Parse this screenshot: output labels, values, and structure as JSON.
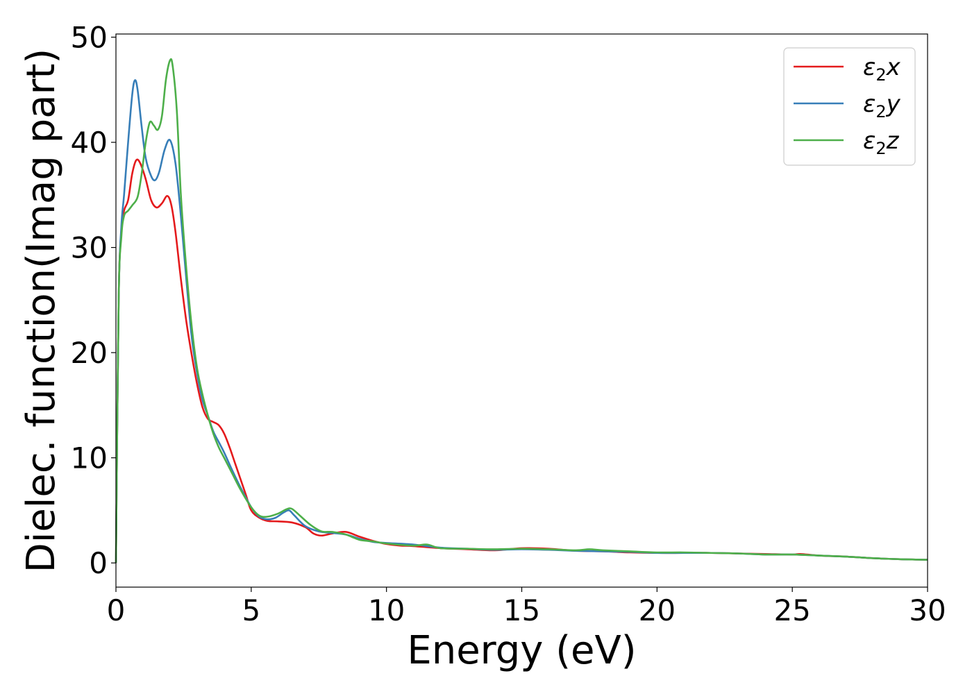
{
  "chart_data": {
    "type": "line",
    "xlabel": "Energy (eV)",
    "ylabel": "Dielec. function(Imag part)",
    "xlim": [
      0,
      30
    ],
    "ylim": [
      -2.3,
      50.3
    ],
    "xticks": [
      0,
      5,
      10,
      15,
      20,
      25,
      30
    ],
    "yticks": [
      0,
      10,
      20,
      30,
      40,
      50
    ],
    "x_tick_labels": [
      "0",
      "5",
      "10",
      "15",
      "20",
      "25",
      "30"
    ],
    "y_tick_labels": [
      "0",
      "10",
      "20",
      "30",
      "40",
      "50"
    ],
    "grid": false,
    "legend_position": "top-right",
    "series": [
      {
        "name": "ε₂x",
        "legend_base": "ε",
        "legend_sub": "2",
        "legend_var": "x",
        "color": "#e41a1c",
        "x": [
          0,
          0.1,
          0.2,
          0.3,
          0.45,
          0.6,
          0.75,
          0.9,
          1.1,
          1.3,
          1.5,
          1.7,
          1.9,
          2.05,
          2.2,
          2.4,
          2.6,
          2.8,
          3.0,
          3.2,
          3.4,
          3.6,
          3.8,
          4.0,
          4.2,
          4.4,
          4.6,
          4.8,
          5.0,
          5.3,
          5.6,
          6.0,
          6.5,
          7.0,
          7.3,
          7.6,
          8.0,
          8.5,
          9.0,
          9.5,
          10.0,
          10.5,
          11.0,
          12.0,
          13.0,
          14.0,
          15.0,
          16.0,
          17.0,
          18.0,
          19.0,
          20.0,
          21.0,
          22.0,
          23.0,
          24.0,
          25.0,
          25.3,
          26.0,
          27.0,
          28.0,
          29.0,
          30.0
        ],
        "y": [
          0,
          25,
          31.5,
          33.5,
          34.5,
          37,
          38.3,
          38.0,
          36.5,
          34.5,
          33.8,
          34.2,
          34.9,
          34.0,
          31.5,
          27,
          23,
          19.8,
          17.0,
          14.8,
          13.7,
          13.4,
          13.1,
          12.3,
          11.0,
          9.5,
          8.0,
          6.5,
          5.0,
          4.3,
          4.0,
          3.95,
          3.85,
          3.4,
          2.8,
          2.6,
          2.8,
          2.95,
          2.5,
          2.1,
          1.8,
          1.65,
          1.6,
          1.4,
          1.3,
          1.2,
          1.4,
          1.35,
          1.15,
          1.1,
          1.0,
          0.95,
          0.95,
          0.95,
          0.9,
          0.85,
          0.8,
          0.85,
          0.7,
          0.6,
          0.45,
          0.35,
          0.3
        ]
      },
      {
        "name": "ε₂y",
        "legend_base": "ε",
        "legend_sub": "2",
        "legend_var": "y",
        "color": "#377eb8",
        "x": [
          0,
          0.1,
          0.2,
          0.3,
          0.45,
          0.6,
          0.7,
          0.8,
          0.95,
          1.1,
          1.3,
          1.45,
          1.6,
          1.8,
          2.0,
          2.2,
          2.4,
          2.6,
          2.8,
          3.0,
          3.2,
          3.4,
          3.6,
          3.8,
          4.0,
          4.3,
          4.6,
          5.0,
          5.3,
          5.6,
          5.9,
          6.2,
          6.4,
          6.6,
          7.0,
          7.5,
          8.0,
          8.5,
          9.0,
          9.5,
          10.0,
          11.0,
          12.0,
          13.0,
          14.0,
          15.0,
          16.0,
          17.0,
          18.0,
          19.0,
          20.0,
          21.0,
          22.0,
          23.0,
          24.0,
          25.0,
          26.0,
          27.0,
          28.0,
          29.0,
          30.0
        ],
        "y": [
          0,
          25,
          32,
          35,
          40,
          44.5,
          45.9,
          45.0,
          41.5,
          38.5,
          36.8,
          36.4,
          37.2,
          39.3,
          40.2,
          38.0,
          33,
          27,
          21.5,
          18.0,
          15.5,
          14.0,
          12.5,
          11.5,
          10.5,
          8.8,
          7.2,
          5.3,
          4.4,
          4.15,
          4.3,
          4.8,
          5.0,
          4.5,
          3.5,
          3.0,
          2.85,
          2.7,
          2.3,
          2.0,
          1.9,
          1.75,
          1.45,
          1.35,
          1.25,
          1.3,
          1.25,
          1.15,
          1.1,
          1.05,
          0.95,
          0.95,
          0.95,
          0.9,
          0.8,
          0.8,
          0.7,
          0.6,
          0.45,
          0.35,
          0.3
        ]
      },
      {
        "name": "ε₂z",
        "legend_base": "ε",
        "legend_sub": "2",
        "legend_var": "z",
        "color": "#4daf4a",
        "x": [
          0,
          0.1,
          0.2,
          0.3,
          0.45,
          0.6,
          0.8,
          0.95,
          1.1,
          1.25,
          1.4,
          1.55,
          1.7,
          1.85,
          2.0,
          2.1,
          2.25,
          2.4,
          2.6,
          2.8,
          3.0,
          3.2,
          3.4,
          3.6,
          3.8,
          4.0,
          4.3,
          4.6,
          5.0,
          5.3,
          5.6,
          6.0,
          6.3,
          6.5,
          6.8,
          7.2,
          7.6,
          8.0,
          8.5,
          9.0,
          9.5,
          10.0,
          11.0,
          11.5,
          12.0,
          13.0,
          14.0,
          15.0,
          16.0,
          17.0,
          17.5,
          18.0,
          19.0,
          20.0,
          21.0,
          22.0,
          23.0,
          24.0,
          25.0,
          26.0,
          27.0,
          28.0,
          29.0,
          30.0
        ],
        "y": [
          0,
          25,
          31,
          33,
          33.5,
          34,
          34.8,
          37,
          40,
          41.9,
          41.6,
          41.2,
          42.5,
          46.0,
          47.8,
          47.2,
          43.0,
          35.0,
          28.0,
          22.5,
          18.5,
          16.0,
          14.0,
          12.3,
          11.0,
          10.0,
          8.5,
          7.0,
          5.3,
          4.5,
          4.4,
          4.7,
          5.1,
          5.15,
          4.5,
          3.6,
          3.0,
          2.95,
          2.7,
          2.2,
          2.05,
          1.85,
          1.65,
          1.75,
          1.4,
          1.35,
          1.3,
          1.35,
          1.3,
          1.2,
          1.3,
          1.2,
          1.1,
          1.0,
          1.0,
          0.95,
          0.9,
          0.8,
          0.8,
          0.7,
          0.6,
          0.45,
          0.35,
          0.3
        ]
      }
    ]
  }
}
